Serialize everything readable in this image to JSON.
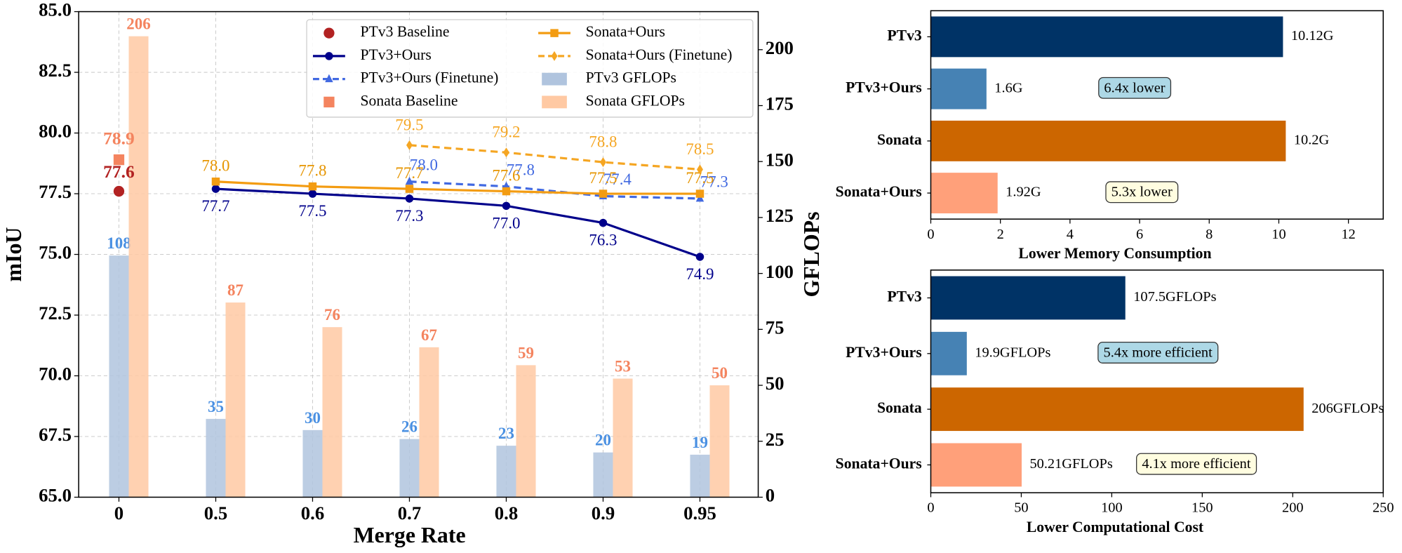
{
  "chart_data": [
    {
      "type": "combo",
      "xlabel": "Merge Rate",
      "ylabel": "mIoU",
      "y2label": "GFLOPs",
      "categories": [
        "0",
        "0.5",
        "0.6",
        "0.7",
        "0.8",
        "0.9",
        "0.95"
      ],
      "ylim": [
        65,
        85
      ],
      "yticks": [
        {
          "value": 65,
          "label": "65.0"
        },
        {
          "value": 67.5,
          "label": "67.5"
        },
        {
          "value": 70,
          "label": "70.0"
        },
        {
          "value": 72.5,
          "label": "72.5"
        },
        {
          "value": 75,
          "label": "75.0"
        },
        {
          "value": 77.5,
          "label": "77.5"
        },
        {
          "value": 80,
          "label": "80.0"
        },
        {
          "value": 82.5,
          "label": "82.5"
        },
        {
          "value": 85,
          "label": "85.0"
        }
      ],
      "y2lim": [
        0,
        217
      ],
      "y2ticks": [
        0,
        25,
        50,
        75,
        100,
        125,
        150,
        175,
        200
      ],
      "grid": true,
      "legend": "upper right",
      "series": [
        {
          "name": "PTv3 Baseline",
          "kind": "scatter",
          "marker": "circle",
          "color": "#b22222",
          "values": [
            77.6,
            null,
            null,
            null,
            null,
            null,
            null
          ]
        },
        {
          "name": "PTv3+Ours",
          "kind": "line",
          "marker": "circle",
          "dash": false,
          "color": "#00008b",
          "values": [
            null,
            77.7,
            77.5,
            77.3,
            77.0,
            76.3,
            74.9
          ],
          "value_labels": [
            null,
            "77.7",
            "77.5",
            "77.3",
            "77.0",
            "76.3",
            "74.9"
          ]
        },
        {
          "name": "PTv3+Ours (Finetune)",
          "kind": "line",
          "marker": "triangle",
          "dash": true,
          "color": "#4169e1",
          "values": [
            null,
            null,
            null,
            78.0,
            77.8,
            77.4,
            77.3
          ],
          "value_labels": [
            null,
            null,
            null,
            "78.0",
            "77.8",
            "77.4",
            "77.3"
          ]
        },
        {
          "name": "Sonata Baseline",
          "kind": "scatter",
          "marker": "square",
          "color": "#f4845f",
          "values": [
            78.9,
            null,
            null,
            null,
            null,
            null,
            null
          ]
        },
        {
          "name": "Sonata+Ours",
          "kind": "line",
          "marker": "square",
          "dash": false,
          "color": "#f39c12",
          "values": [
            null,
            78.0,
            77.8,
            77.7,
            77.6,
            77.5,
            77.5
          ],
          "value_labels": [
            null,
            "78.0",
            "77.8",
            "77.7",
            "77.6",
            "77.5",
            "77.5"
          ]
        },
        {
          "name": "Sonata+Ours (Finetune)",
          "kind": "line",
          "marker": "diamond",
          "dash": true,
          "color": "#f5a623",
          "values": [
            null,
            null,
            null,
            79.5,
            79.2,
            78.8,
            78.5
          ],
          "value_labels": [
            null,
            null,
            null,
            "79.5",
            "79.2",
            "78.8",
            "78.5"
          ]
        },
        {
          "name": "PTv3 GFLOPs",
          "kind": "bar",
          "axis": "y2",
          "color": "#b0c4de",
          "values": [
            108,
            35,
            30,
            26,
            23,
            20,
            19
          ]
        },
        {
          "name": "Sonata GFLOPs",
          "kind": "bar",
          "axis": "y2",
          "color": "#ffc9a3",
          "values": [
            206,
            87,
            76,
            67,
            59,
            53,
            50
          ]
        }
      ]
    },
    {
      "type": "hbar",
      "xlabel": "Lower Memory Consumption",
      "categories": [
        "PTv3",
        "PTv3+Ours",
        "Sonata",
        "Sonata+Ours"
      ],
      "values": [
        10.12,
        1.6,
        10.2,
        1.92
      ],
      "value_labels": [
        "10.12G",
        "1.6G",
        "10.2G",
        "1.92G"
      ],
      "colors": [
        "#003366",
        "#4682b4",
        "#cc6600",
        "#ffa07a"
      ],
      "annotations": [
        null,
        "6.4x lower",
        null,
        "5.3x lower"
      ],
      "xlim": [
        0,
        13
      ],
      "xticks": [
        0,
        2,
        4,
        6,
        8,
        10,
        12
      ]
    },
    {
      "type": "hbar",
      "xlabel": "Lower Computational Cost",
      "categories": [
        "PTv3",
        "PTv3+Ours",
        "Sonata",
        "Sonata+Ours"
      ],
      "values": [
        107.5,
        19.9,
        206,
        50.21
      ],
      "value_labels": [
        "107.5GFLOPs",
        "19.9GFLOPs",
        "206GFLOPs",
        "50.21GFLOPs"
      ],
      "colors": [
        "#003366",
        "#4682b4",
        "#cc6600",
        "#ffa07a"
      ],
      "annotations": [
        null,
        "5.4x more efficient",
        null,
        "4.1x more efficient"
      ],
      "xlim": [
        0,
        250
      ],
      "xticks": [
        0,
        50,
        100,
        150,
        200,
        250
      ]
    }
  ]
}
